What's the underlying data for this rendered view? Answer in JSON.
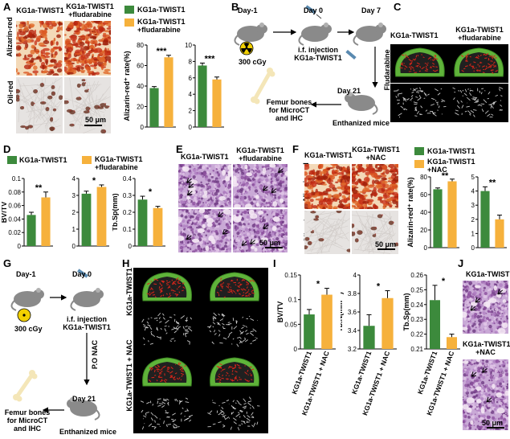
{
  "panel_labels": {
    "a": "A",
    "b": "B",
    "c": "C",
    "d": "D",
    "e": "E",
    "f": "F",
    "g": "G",
    "h": "H",
    "i": "I",
    "j": "J"
  },
  "groups": {
    "control": "KG1a-TWIST1",
    "flu": "KG1a-TWIST1 +fludarabine",
    "flu_l1": "KG1a-TWIST1",
    "flu_l2": "+fludarabine",
    "nac_l1": "KG1a-TWIST1",
    "nac_l2": "+NAC",
    "nac_axis": "KG1a-TWIST1 + NAC"
  },
  "stains": {
    "alizarin": "Alizarin-red",
    "oil": "Oil-red"
  },
  "scalebar": "50 μm",
  "colors": {
    "control": "#3c8a3c",
    "treated": "#f6b13c"
  },
  "timeline": {
    "day_m1": "Day-1",
    "day0": "Day 0",
    "day7": "Day 7",
    "day21": "Day 21",
    "dose": "300 cGy",
    "injection": "i.f. injection",
    "cell": "KG1a-TWIST1",
    "fludarabine": "Fludarabine",
    "femur1": "Femur bones",
    "femur2": "for MicroCT",
    "femur3": "and IHC",
    "euthanized": "Enthanized mice",
    "po_nac": "P.O NAC",
    "femur_g": "Femur bones for MicroCT and IHC"
  },
  "ylabels": {
    "alizarin": "Alizarin-red⁺ rate(%)",
    "oil": "Oil-red⁺ rate(%)",
    "bvtv": "BV/TV",
    "tbn": "Tb.N(mm⁻¹)",
    "tbsp": "Tb.Sp(mm)"
  },
  "signif": {
    "a1": "***",
    "a2": "***",
    "d1": "**",
    "d2": "*",
    "d3": "*",
    "f1": "**",
    "f2": "**",
    "i1": "*",
    "i2": "*",
    "i3": "*"
  },
  "h_side": {
    "top": "KG1a-TWIST1",
    "bottom": "KG1a-TWIST1 + NAC"
  },
  "chart_data": [
    {
      "id": "A-alizarin",
      "type": "bar",
      "categories": [
        "KG1a-TWIST1",
        "KG1a-TWIST1 +fludarabine"
      ],
      "values": [
        38,
        68
      ],
      "errors": [
        1.5,
        2
      ],
      "ylim": [
        0,
        80
      ],
      "ticks": [
        0,
        20,
        40,
        60,
        80
      ],
      "ylabel": "Alizarin-red⁺ rate(%)",
      "signif": "***"
    },
    {
      "id": "A-oil",
      "type": "bar",
      "categories": [
        "KG1a-TWIST1",
        "KG1a-TWIST1 +fludarabine"
      ],
      "values": [
        7.5,
        5.8
      ],
      "errors": [
        0.3,
        0.3
      ],
      "ylim": [
        0,
        10
      ],
      "ticks": [
        0,
        2,
        4,
        6,
        8,
        10
      ],
      "ylabel": "Oil-red⁺ rate(%)",
      "signif": "***"
    },
    {
      "id": "D-bvtv",
      "type": "bar",
      "categories": [
        "KG1a-TWIST1",
        "KG1a-TWIST1 +fludarabine"
      ],
      "values": [
        0.046,
        0.072
      ],
      "errors": [
        0.004,
        0.008
      ],
      "ylim": [
        0,
        0.1
      ],
      "ticks": [
        0,
        0.02,
        0.04,
        0.06,
        0.08,
        0.1
      ],
      "ylabel": "BV/TV",
      "signif": "**"
    },
    {
      "id": "D-tbn",
      "type": "bar",
      "categories": [
        "KG1a-TWIST1",
        "KG1a-TWIST1 +fludarabine"
      ],
      "values": [
        3.1,
        3.5
      ],
      "errors": [
        0.15,
        0.12
      ],
      "ylim": [
        0,
        4
      ],
      "ticks": [
        0,
        1,
        2,
        3,
        4
      ],
      "ylabel": "Tb.N(mm⁻¹)",
      "signif": "*"
    },
    {
      "id": "D-tbsp",
      "type": "bar",
      "categories": [
        "KG1a-TWIST1",
        "KG1a-TWIST1 +fludarabine"
      ],
      "values": [
        0.275,
        0.225
      ],
      "errors": [
        0.02,
        0.01
      ],
      "ylim": [
        0,
        0.4
      ],
      "ticks": [
        0,
        0.1,
        0.2,
        0.3,
        0.4
      ],
      "ylabel": "Tb.Sp(mm)",
      "signif": "*"
    },
    {
      "id": "F-alizarin",
      "type": "bar",
      "categories": [
        "KG1a-TWIST1",
        "KG1a-TWIST1 +NAC"
      ],
      "values": [
        66,
        75
      ],
      "errors": [
        1.5,
        2.5
      ],
      "ylim": [
        0,
        80
      ],
      "ticks": [
        0,
        20,
        40,
        60,
        80
      ],
      "ylabel": "Alizarin-red⁺ rate(%)",
      "signif": "**"
    },
    {
      "id": "F-oil",
      "type": "bar",
      "categories": [
        "KG1a-TWIST1",
        "KG1a-TWIST1 +NAC"
      ],
      "values": [
        4.0,
        2.0
      ],
      "errors": [
        0.3,
        0.3
      ],
      "ylim": [
        0,
        5
      ],
      "ticks": [
        0,
        1,
        2,
        3,
        4,
        5
      ],
      "ylabel": "Oil-red⁺ rate(%)",
      "signif": "**"
    },
    {
      "id": "I-bvtv",
      "type": "bar",
      "categories": [
        "KG1a-TWIST1",
        "KG1a-TWIST1 + NAC"
      ],
      "values": [
        0.07,
        0.11
      ],
      "errors": [
        0.01,
        0.013
      ],
      "ylim": [
        0,
        0.15
      ],
      "ticks": [
        0,
        0.05,
        0.1,
        0.15
      ],
      "ylabel": "BV/TV",
      "signif": "*"
    },
    {
      "id": "I-tbn",
      "type": "bar",
      "categories": [
        "KG1a-TWIST1",
        "KG1a-TWIST1 + NAC"
      ],
      "values": [
        3.45,
        3.75
      ],
      "errors": [
        0.12,
        0.08
      ],
      "ylim": [
        3.2,
        4.0
      ],
      "ticks": [
        3.2,
        3.4,
        3.6,
        3.8,
        4.0
      ],
      "ylabel": "Tb.N(mm⁻¹)",
      "signif": "*"
    },
    {
      "id": "I-tbsp",
      "type": "bar",
      "categories": [
        "KG1a-TWIST1",
        "KG1a-TWIST1 + NAC"
      ],
      "values": [
        0.243,
        0.218
      ],
      "errors": [
        0.01,
        0.002
      ],
      "ylim": [
        0.21,
        0.26
      ],
      "ticks": [
        0.21,
        0.22,
        0.23,
        0.24,
        0.25,
        0.26
      ],
      "ylabel": "Tb.Sp(mm)",
      "signif": "*"
    }
  ]
}
